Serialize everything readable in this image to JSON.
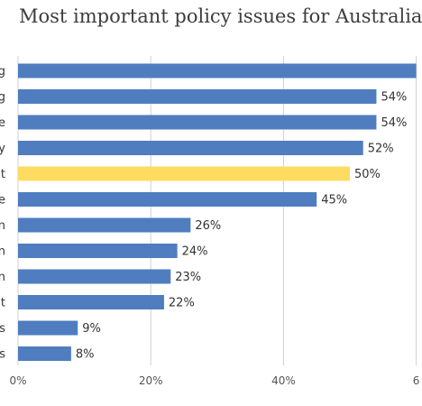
{
  "chart_data": {
    "type": "bar",
    "orientation": "horizontal",
    "title": "Most important policy issues for Australia",
    "categories": [
      "g",
      "g",
      "e",
      "y",
      "t",
      "e",
      "n",
      "n",
      "n",
      "t",
      "s",
      "s"
    ],
    "values": [
      60,
      54,
      54,
      52,
      50,
      45,
      26,
      24,
      23,
      22,
      9,
      8
    ],
    "value_labels": [
      "",
      "54%",
      "54%",
      "52%",
      "50%",
      "45%",
      "26%",
      "24%",
      "23%",
      "22%",
      "9%",
      "8%"
    ],
    "highlight_index": 4,
    "x_ticks": [
      "0%",
      "20%",
      "40%",
      "6"
    ],
    "x_tick_values": [
      0,
      20,
      40,
      60
    ],
    "xlim": [
      0,
      60
    ],
    "xlabel": "",
    "ylabel": "",
    "grid": "vertical gridlines",
    "colors": {
      "bar": "#4f7dbf",
      "highlight": "#fedc61",
      "grid": "#d0d0d0",
      "text": "#333333"
    }
  }
}
